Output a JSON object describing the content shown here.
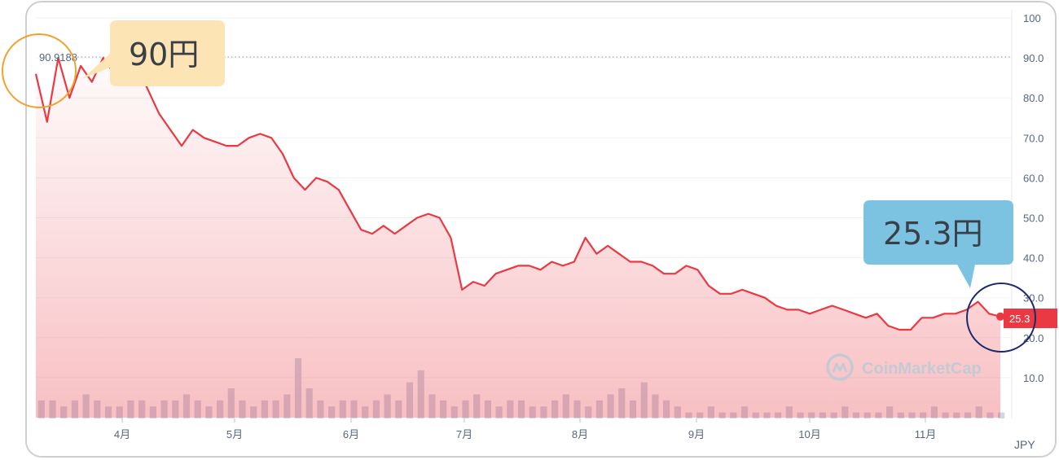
{
  "chart_data": {
    "type": "line",
    "currency": "JPY",
    "x_tick_labels": [
      "4月",
      "5月",
      "6月",
      "7月",
      "8月",
      "9月",
      "10月",
      "11月"
    ],
    "y_tick_labels": [
      "10.0",
      "20.0",
      "30.0",
      "40.0",
      "50.0",
      "60.0",
      "70.0",
      "80.0",
      "90.0",
      "100"
    ],
    "ylim": [
      0,
      100
    ],
    "grid": true,
    "high_label": "90.9188",
    "current_value_label": "25.3",
    "series": [
      {
        "values": [
          86,
          74,
          90,
          80,
          88,
          84,
          90,
          86,
          89,
          88,
          82,
          76,
          72,
          68,
          72,
          70,
          69,
          68,
          68,
          70,
          71,
          70,
          66,
          60,
          57,
          60,
          59,
          57,
          52,
          47,
          46,
          48,
          46,
          48,
          50,
          51,
          50,
          45,
          32,
          34,
          33,
          36,
          37,
          38,
          38,
          37,
          39,
          38,
          39,
          45,
          41,
          43,
          41,
          39,
          39,
          38,
          36,
          36,
          38,
          37,
          33,
          31,
          31,
          32,
          31,
          30,
          28,
          27,
          27,
          26,
          27,
          28,
          27,
          26,
          25,
          26,
          23,
          22,
          22,
          25,
          25,
          26,
          26,
          27,
          29,
          26,
          25.3
        ]
      }
    ],
    "volume": [
      3,
      3,
      2,
      3,
      4,
      3,
      2,
      2,
      3,
      3,
      2,
      3,
      3,
      4,
      3,
      2,
      3,
      5,
      3,
      2,
      3,
      3,
      4,
      10,
      5,
      3,
      2,
      3,
      3,
      2,
      3,
      4,
      3,
      6,
      8,
      4,
      3,
      2,
      3,
      4,
      3,
      2,
      3,
      3,
      2,
      2,
      3,
      4,
      3,
      2,
      3,
      4,
      5,
      3,
      6,
      4,
      3,
      2,
      1,
      1,
      2,
      1,
      1,
      2,
      1,
      1,
      1,
      2,
      1,
      1,
      1,
      1,
      2,
      1,
      1,
      1,
      2,
      1,
      1,
      1,
      2,
      1,
      1,
      1,
      2,
      1,
      1
    ]
  },
  "callouts": {
    "high": "90円",
    "current": "25.3円"
  },
  "watermark": "CoinMarketCap",
  "colors": {
    "line": "#ea3943",
    "fill": "#ea3943",
    "volume": "#cfd6e4",
    "grid": "#eff2f5",
    "high_callout": "#fde4b5",
    "current_callout": "#7cc3e2",
    "high_circle": "#f0a22e",
    "current_circle": "#1c2a6b"
  }
}
